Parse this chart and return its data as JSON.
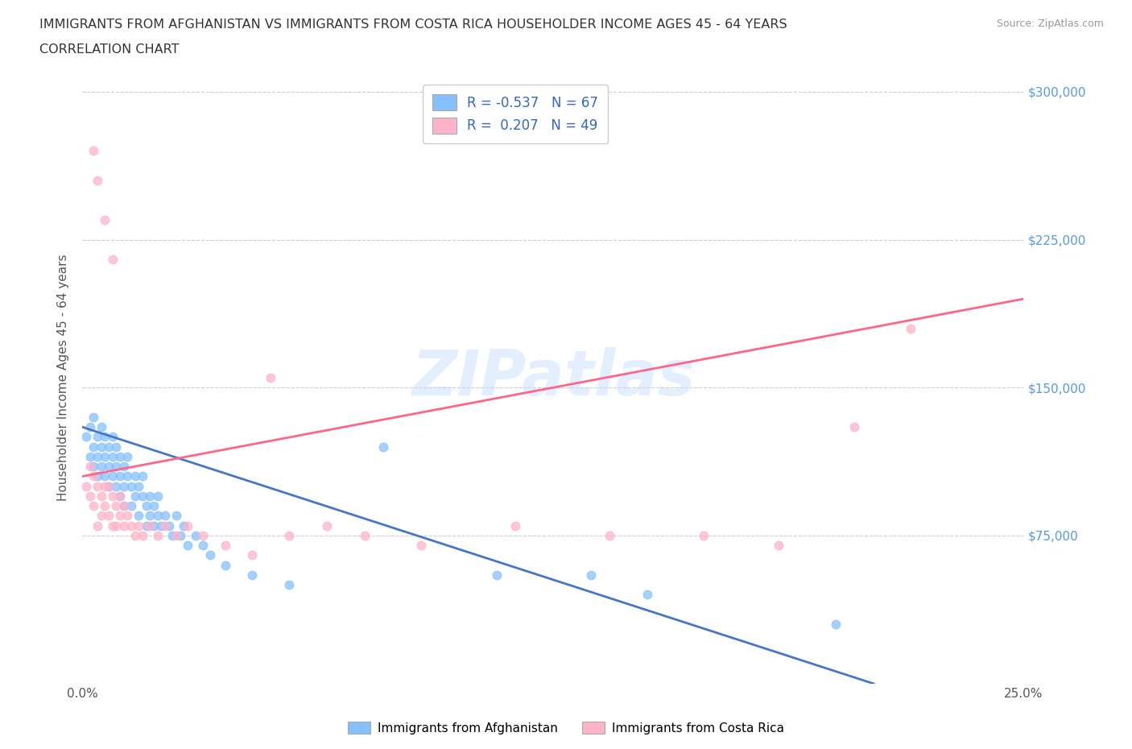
{
  "title_line1": "IMMIGRANTS FROM AFGHANISTAN VS IMMIGRANTS FROM COSTA RICA HOUSEHOLDER INCOME AGES 45 - 64 YEARS",
  "title_line2": "CORRELATION CHART",
  "source_text": "Source: ZipAtlas.com",
  "ylabel": "Householder Income Ages 45 - 64 years",
  "xlim": [
    0.0,
    0.25
  ],
  "ylim": [
    0,
    310000
  ],
  "x_ticks": [
    0.0,
    0.05,
    0.1,
    0.15,
    0.2,
    0.25
  ],
  "y_ticks": [
    0,
    75000,
    150000,
    225000,
    300000
  ],
  "watermark": "ZIPatlas",
  "legend_r1": "R = -0.537   N = 67",
  "legend_r2": "R =  0.207   N = 49",
  "color_afghanistan": "#85C1FF",
  "color_costa_rica": "#FFB3C8",
  "line_color_afghanistan": "#4477CC",
  "line_color_costa_rica": "#FF6688",
  "afghanistan_scatter_x": [
    0.001,
    0.002,
    0.002,
    0.003,
    0.003,
    0.003,
    0.004,
    0.004,
    0.004,
    0.005,
    0.005,
    0.005,
    0.006,
    0.006,
    0.006,
    0.007,
    0.007,
    0.007,
    0.008,
    0.008,
    0.008,
    0.009,
    0.009,
    0.009,
    0.01,
    0.01,
    0.01,
    0.011,
    0.011,
    0.011,
    0.012,
    0.012,
    0.013,
    0.013,
    0.014,
    0.014,
    0.015,
    0.015,
    0.016,
    0.016,
    0.017,
    0.017,
    0.018,
    0.018,
    0.019,
    0.019,
    0.02,
    0.02,
    0.021,
    0.022,
    0.023,
    0.024,
    0.025,
    0.026,
    0.027,
    0.028,
    0.03,
    0.032,
    0.034,
    0.038,
    0.045,
    0.055,
    0.08,
    0.11,
    0.135,
    0.15,
    0.2
  ],
  "afghanistan_scatter_y": [
    125000,
    130000,
    115000,
    120000,
    135000,
    110000,
    125000,
    115000,
    105000,
    120000,
    110000,
    130000,
    115000,
    125000,
    105000,
    120000,
    110000,
    100000,
    115000,
    105000,
    125000,
    110000,
    100000,
    120000,
    115000,
    105000,
    95000,
    110000,
    100000,
    90000,
    105000,
    115000,
    100000,
    90000,
    105000,
    95000,
    100000,
    85000,
    95000,
    105000,
    90000,
    80000,
    95000,
    85000,
    90000,
    80000,
    85000,
    95000,
    80000,
    85000,
    80000,
    75000,
    85000,
    75000,
    80000,
    70000,
    75000,
    70000,
    65000,
    60000,
    55000,
    50000,
    120000,
    55000,
    55000,
    45000,
    30000
  ],
  "costa_rica_scatter_x": [
    0.001,
    0.002,
    0.002,
    0.003,
    0.003,
    0.004,
    0.004,
    0.005,
    0.005,
    0.006,
    0.006,
    0.007,
    0.007,
    0.008,
    0.008,
    0.009,
    0.009,
    0.01,
    0.01,
    0.011,
    0.011,
    0.012,
    0.013,
    0.014,
    0.015,
    0.016,
    0.018,
    0.02,
    0.022,
    0.025,
    0.028,
    0.032,
    0.038,
    0.045,
    0.055,
    0.065,
    0.075,
    0.09,
    0.115,
    0.14,
    0.165,
    0.185,
    0.205,
    0.22,
    0.05,
    0.003,
    0.004,
    0.006,
    0.008
  ],
  "costa_rica_scatter_y": [
    100000,
    110000,
    95000,
    105000,
    90000,
    100000,
    80000,
    95000,
    85000,
    100000,
    90000,
    85000,
    100000,
    95000,
    80000,
    90000,
    80000,
    85000,
    95000,
    80000,
    90000,
    85000,
    80000,
    75000,
    80000,
    75000,
    80000,
    75000,
    80000,
    75000,
    80000,
    75000,
    70000,
    65000,
    75000,
    80000,
    75000,
    70000,
    80000,
    75000,
    75000,
    70000,
    130000,
    180000,
    155000,
    270000,
    255000,
    235000,
    215000
  ],
  "afg_trend_x": [
    0.0,
    0.21
  ],
  "afg_trend_y": [
    130000,
    0
  ],
  "cr_trend_x": [
    0.0,
    0.25
  ],
  "cr_trend_y": [
    105000,
    195000
  ],
  "grid_color": "#cccccc",
  "background_color": "#ffffff",
  "y_tick_labels_right": [
    "",
    "$75,000",
    "$150,000",
    "$225,000",
    "$300,000"
  ]
}
